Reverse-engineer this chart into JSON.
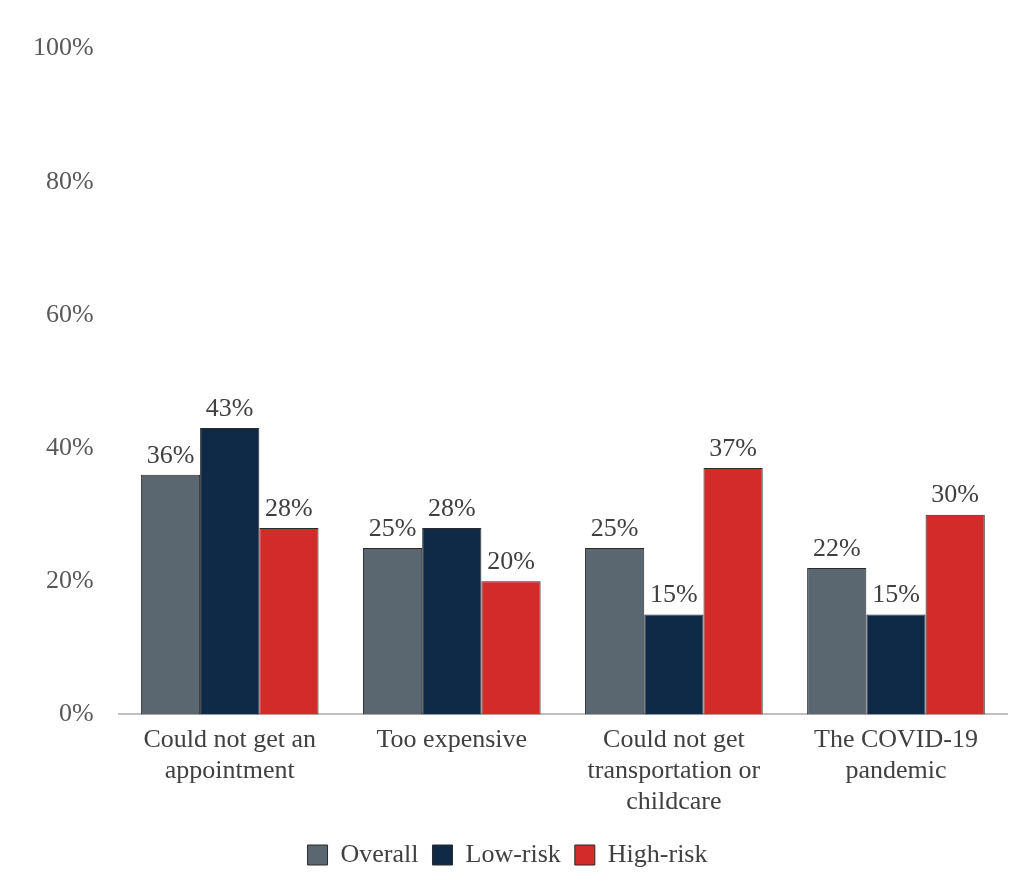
{
  "chart_data": {
    "type": "bar",
    "categories": [
      "Could not get an appointment",
      "Too expensive",
      "Could not get transportation or childcare",
      "The COVID-19 pandemic"
    ],
    "series": [
      {
        "name": "Overall",
        "color": "#5a6670",
        "values": [
          36,
          25,
          25,
          22
        ],
        "value_labels": [
          "36%",
          "25%",
          "25%",
          "22%"
        ]
      },
      {
        "name": "Low-risk",
        "color": "#0e2a47",
        "values": [
          43,
          28,
          15,
          15
        ],
        "value_labels": [
          "43%",
          "28%",
          "15%",
          "15%"
        ]
      },
      {
        "name": "High-risk",
        "color": "#d32a2a",
        "values": [
          28,
          20,
          37,
          30
        ],
        "value_labels": [
          "28%",
          "20%",
          "37%",
          "30%"
        ]
      }
    ],
    "ylim": [
      0,
      100
    ],
    "yticks": [
      {
        "value": 0,
        "label": "0%"
      },
      {
        "value": 20,
        "label": "20%"
      },
      {
        "value": 40,
        "label": "40%"
      },
      {
        "value": 60,
        "label": "60%"
      },
      {
        "value": 80,
        "label": "80%"
      },
      {
        "value": 100,
        "label": "100%"
      }
    ],
    "grid": false,
    "legend": "bottom"
  }
}
